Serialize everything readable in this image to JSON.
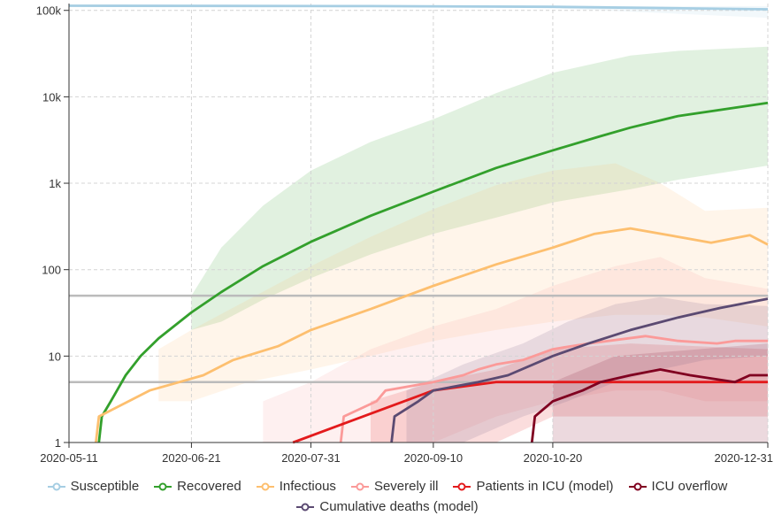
{
  "chart_data": {
    "type": "line",
    "title": "",
    "xlabel": "",
    "ylabel": "",
    "yscale": "log",
    "ylim": [
      1,
      120000
    ],
    "xlim": [
      "2020-05-11",
      "2020-12-31"
    ],
    "x_ticks": [
      "2020-05-11",
      "2020-06-21",
      "2020-07-31",
      "2020-09-10",
      "2020-10-20",
      "2020-12-31"
    ],
    "y_ticks": [
      {
        "value": 1,
        "label": "1"
      },
      {
        "value": 10,
        "label": "10"
      },
      {
        "value": 100,
        "label": "100"
      },
      {
        "value": 1000,
        "label": "1k"
      },
      {
        "value": 10000,
        "label": "10k"
      },
      {
        "value": 100000,
        "label": "100k"
      }
    ],
    "grid": true,
    "legend_position": "bottom",
    "reference_lines": [
      {
        "value": 50,
        "color": "#bbbbbb"
      },
      {
        "value": 5,
        "color": "#bbbbbb"
      }
    ],
    "series": [
      {
        "name": "Susceptible",
        "color": "#a6cee3",
        "band_color": "#a6cee3",
        "points": [
          [
            "2020-05-11",
            113000
          ],
          [
            "2020-08-20",
            112000
          ],
          [
            "2020-10-20",
            110000
          ],
          [
            "2020-12-31",
            103000
          ]
        ],
        "band": [
          [
            "2020-05-11",
            112500,
            113500
          ],
          [
            "2020-09-10",
            110000,
            113000
          ],
          [
            "2020-10-20",
            106000,
            112500
          ],
          [
            "2020-12-31",
            82000,
            112000
          ]
        ]
      },
      {
        "name": "Recovered",
        "color": "#33a02c",
        "band_color": "#33a02c",
        "points": [
          [
            "2020-05-21",
            1
          ],
          [
            "2020-05-22",
            2
          ],
          [
            "2020-05-25",
            3
          ],
          [
            "2020-05-30",
            6
          ],
          [
            "2020-06-04",
            10
          ],
          [
            "2020-06-10",
            16
          ],
          [
            "2020-06-21",
            32
          ],
          [
            "2020-07-01",
            55
          ],
          [
            "2020-07-15",
            110
          ],
          [
            "2020-07-31",
            210
          ],
          [
            "2020-08-20",
            420
          ],
          [
            "2020-09-10",
            800
          ],
          [
            "2020-10-01",
            1500
          ],
          [
            "2020-10-20",
            2400
          ],
          [
            "2020-11-05",
            3500
          ],
          [
            "2020-11-15",
            4400
          ],
          [
            "2020-12-01",
            6000
          ],
          [
            "2020-12-31",
            8500
          ]
        ],
        "band": [
          [
            "2020-06-21",
            20,
            50
          ],
          [
            "2020-07-01",
            25,
            180
          ],
          [
            "2020-07-15",
            45,
            550
          ],
          [
            "2020-07-31",
            80,
            1400
          ],
          [
            "2020-08-20",
            150,
            3000
          ],
          [
            "2020-09-10",
            260,
            5500
          ],
          [
            "2020-10-01",
            400,
            11000
          ],
          [
            "2020-10-20",
            600,
            19000
          ],
          [
            "2020-11-15",
            850,
            30000
          ],
          [
            "2020-12-01",
            1100,
            34000
          ],
          [
            "2020-12-31",
            1600,
            38000
          ]
        ]
      },
      {
        "name": "Infectious",
        "color": "#fdbf6f",
        "band_color": "#fdbf6f",
        "points": [
          [
            "2020-05-20",
            1
          ],
          [
            "2020-05-21",
            2
          ],
          [
            "2020-05-31",
            3
          ],
          [
            "2020-06-07",
            4
          ],
          [
            "2020-06-17",
            5
          ],
          [
            "2020-06-25",
            6
          ],
          [
            "2020-07-05",
            9
          ],
          [
            "2020-07-20",
            13
          ],
          [
            "2020-07-31",
            20
          ],
          [
            "2020-08-20",
            35
          ],
          [
            "2020-09-10",
            65
          ],
          [
            "2020-10-01",
            115
          ],
          [
            "2020-10-20",
            180
          ],
          [
            "2020-11-03",
            260
          ],
          [
            "2020-11-15",
            300
          ],
          [
            "2020-12-01",
            240
          ],
          [
            "2020-12-12",
            205
          ],
          [
            "2020-12-25",
            250
          ],
          [
            "2020-12-31",
            195
          ]
        ],
        "band": [
          [
            "2020-06-10",
            3,
            12
          ],
          [
            "2020-06-21",
            3,
            20
          ],
          [
            "2020-07-10",
            5,
            45
          ],
          [
            "2020-07-31",
            7,
            110
          ],
          [
            "2020-08-20",
            10,
            240
          ],
          [
            "2020-09-10",
            15,
            500
          ],
          [
            "2020-10-01",
            20,
            950
          ],
          [
            "2020-10-20",
            25,
            1400
          ],
          [
            "2020-11-10",
            30,
            1700
          ],
          [
            "2020-11-25",
            30,
            1000
          ],
          [
            "2020-12-10",
            28,
            480
          ],
          [
            "2020-12-31",
            22,
            520
          ]
        ]
      },
      {
        "name": "Severely ill",
        "color": "#fb9a99",
        "band_color": "#fb9a99",
        "points": [
          [
            "2020-08-10",
            1
          ],
          [
            "2020-08-11",
            2
          ],
          [
            "2020-08-22",
            3
          ],
          [
            "2020-08-25",
            4
          ],
          [
            "2020-09-10",
            5
          ],
          [
            "2020-09-20",
            6
          ],
          [
            "2020-09-25",
            7
          ],
          [
            "2020-10-01",
            8
          ],
          [
            "2020-10-10",
            9
          ],
          [
            "2020-10-20",
            12
          ],
          [
            "2020-11-01",
            14
          ],
          [
            "2020-11-20",
            17
          ],
          [
            "2020-12-01",
            15
          ],
          [
            "2020-12-14",
            14
          ],
          [
            "2020-12-20",
            15
          ],
          [
            "2020-12-31",
            15
          ]
        ],
        "band": [
          [
            "2020-07-15",
            1,
            3
          ],
          [
            "2020-07-31",
            1,
            5
          ],
          [
            "2020-08-20",
            1,
            12
          ],
          [
            "2020-09-10",
            1,
            22
          ],
          [
            "2020-10-01",
            2,
            35
          ],
          [
            "2020-10-20",
            3,
            65
          ],
          [
            "2020-11-10",
            4,
            110
          ],
          [
            "2020-11-25",
            4,
            140
          ],
          [
            "2020-12-10",
            3,
            80
          ],
          [
            "2020-12-31",
            3,
            60
          ]
        ]
      },
      {
        "name": "Patients in ICU (model)",
        "color": "#e31a1c",
        "band_color": "#e31a1c",
        "points": [
          [
            "2020-07-25",
            1
          ],
          [
            "2020-09-10",
            4
          ],
          [
            "2020-10-01",
            5
          ],
          [
            "2020-10-20",
            5
          ],
          [
            "2020-12-31",
            5
          ]
        ],
        "band": [
          [
            "2020-08-20",
            1,
            3
          ],
          [
            "2020-09-10",
            1,
            5
          ],
          [
            "2020-10-01",
            1,
            7
          ],
          [
            "2020-10-20",
            2,
            12
          ],
          [
            "2020-11-15",
            2,
            14
          ],
          [
            "2020-12-31",
            2,
            12
          ]
        ]
      },
      {
        "name": "ICU overflow",
        "color": "#800020",
        "band_color": "#800020",
        "points": [
          [
            "2020-10-13",
            1
          ],
          [
            "2020-10-14",
            2
          ],
          [
            "2020-10-20",
            3
          ],
          [
            "2020-10-30",
            4
          ],
          [
            "2020-11-05",
            5
          ],
          [
            "2020-11-15",
            6
          ],
          [
            "2020-11-25",
            7
          ],
          [
            "2020-12-05",
            6
          ],
          [
            "2020-12-20",
            5
          ],
          [
            "2020-12-25",
            6
          ],
          [
            "2020-12-31",
            6
          ]
        ],
        "band": [
          [
            "2020-10-20",
            1,
            5
          ],
          [
            "2020-11-10",
            1,
            10
          ],
          [
            "2020-12-31",
            1,
            14
          ]
        ]
      },
      {
        "name": "Cumulative deaths (model)",
        "color": "#5b4a72",
        "band_color": "#6a5a7f",
        "points": [
          [
            "2020-08-27",
            1
          ],
          [
            "2020-08-28",
            2
          ],
          [
            "2020-09-05",
            3
          ],
          [
            "2020-09-10",
            4
          ],
          [
            "2020-09-25",
            5
          ],
          [
            "2020-10-05",
            6
          ],
          [
            "2020-10-20",
            10
          ],
          [
            "2020-11-01",
            14
          ],
          [
            "2020-11-15",
            20
          ],
          [
            "2020-12-01",
            28
          ],
          [
            "2020-12-15",
            36
          ],
          [
            "2020-12-31",
            46
          ]
        ],
        "band": [
          [
            "2020-09-01",
            1,
            4
          ],
          [
            "2020-09-20",
            1,
            8
          ],
          [
            "2020-10-10",
            2,
            14
          ],
          [
            "2020-10-25",
            3,
            25
          ],
          [
            "2020-11-10",
            5,
            40
          ],
          [
            "2020-11-25",
            7,
            48
          ],
          [
            "2020-12-10",
            9,
            40
          ],
          [
            "2020-12-31",
            10,
            38
          ]
        ]
      }
    ]
  }
}
